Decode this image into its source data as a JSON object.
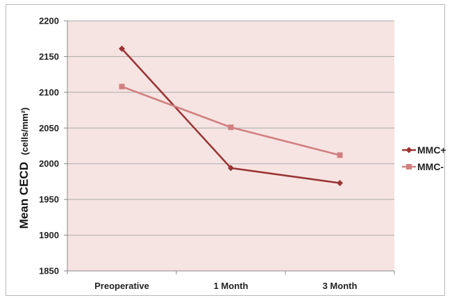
{
  "chart_data": {
    "type": "line",
    "categories": [
      "Preoperative",
      "1 Month",
      "3 Month"
    ],
    "series": [
      {
        "name": "MMC+",
        "values": [
          2161,
          1994,
          1973
        ],
        "color": "#9b3434",
        "marker": "diamond"
      },
      {
        "name": "MMC-",
        "values": [
          2108,
          2051,
          2012
        ],
        "color": "#d08080",
        "marker": "square"
      }
    ],
    "ylabel": "Mean CECD",
    "ylabel_units": "(cells/mm²)",
    "ylim": [
      1850,
      2200
    ],
    "yticks": [
      1850,
      1900,
      1950,
      2000,
      2050,
      2100,
      2150,
      2200
    ],
    "grid": true,
    "plot_background": "#f6e4e2",
    "legend": "right"
  }
}
